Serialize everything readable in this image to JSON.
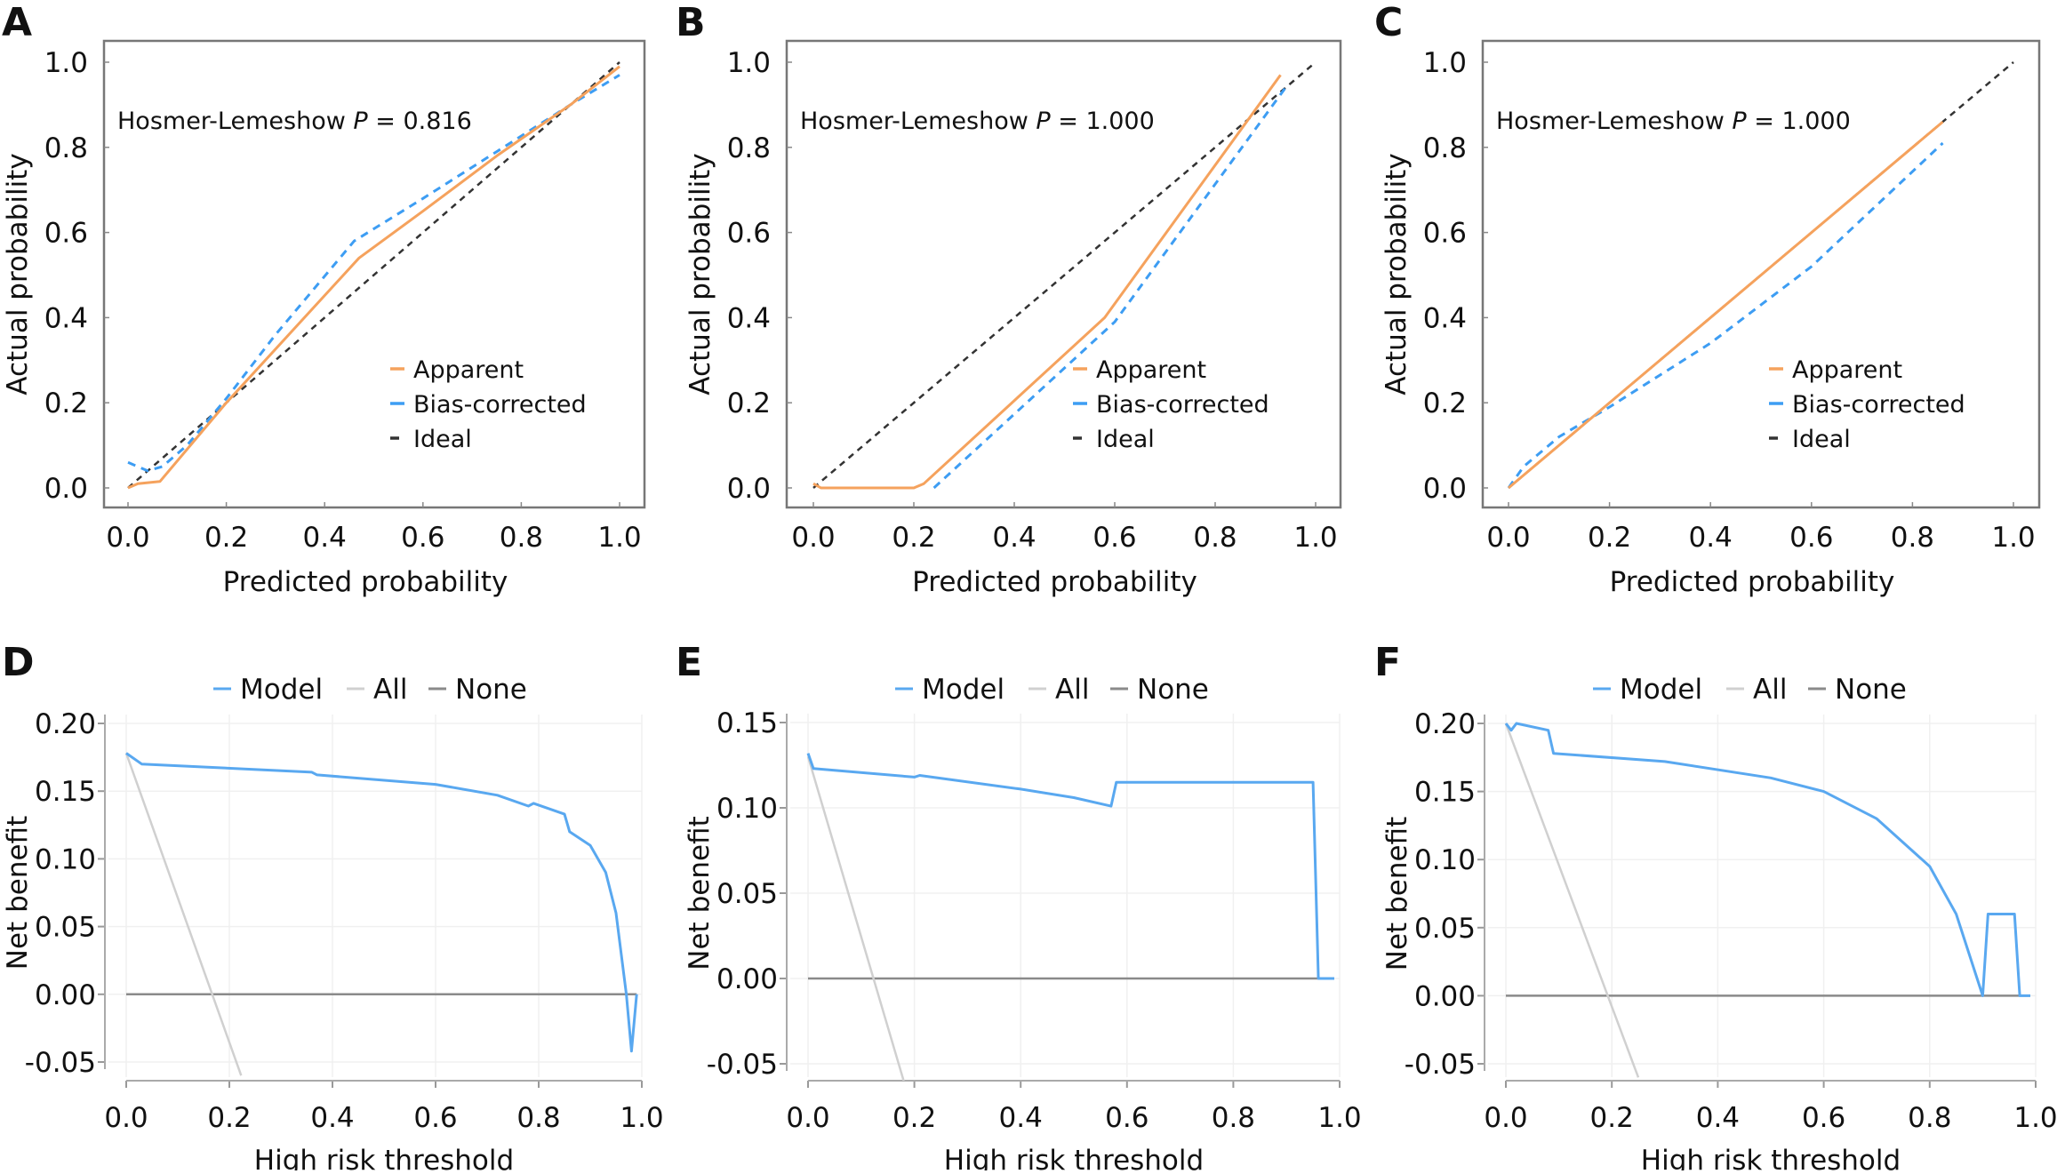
{
  "colors": {
    "apparent": "#f5a25d",
    "bias_corrected": "#3d9df3",
    "ideal": "#333333",
    "model": "#59a8f0",
    "all": "#d0d0d0",
    "none": "#8a8a8a"
  },
  "chart_data": [
    {
      "panel": "A",
      "type": "line",
      "xlabel": "Predicted probability",
      "ylabel": "Actual probability",
      "xlim": [
        0,
        1
      ],
      "ylim": [
        0,
        1
      ],
      "xticks": [
        "0.0",
        "0.2",
        "0.4",
        "0.6",
        "0.8",
        "1.0"
      ],
      "yticks": [
        "0.0",
        "0.2",
        "0.4",
        "0.6",
        "0.8",
        "1.0"
      ],
      "annotation": {
        "prefix": "Hosmer-Lemeshow ",
        "p": "P",
        "value": " = 0.816"
      },
      "legend_placement": "bottom-right",
      "series": [
        {
          "name": "Apparent",
          "style": "solid",
          "color_key": "apparent",
          "points": [
            [
              0,
              0
            ],
            [
              0.02,
              0.01
            ],
            [
              0.065,
              0.015
            ],
            [
              0.2,
              0.2
            ],
            [
              0.47,
              0.54
            ],
            [
              0.6,
              0.65
            ],
            [
              0.75,
              0.78
            ],
            [
              0.9,
              0.9
            ],
            [
              1,
              0.99
            ]
          ]
        },
        {
          "name": "Bias-corrected",
          "style": "dashed",
          "color_key": "bias_corrected",
          "points": [
            [
              0,
              0.06
            ],
            [
              0.04,
              0.04
            ],
            [
              0.07,
              0.05
            ],
            [
              0.12,
              0.1
            ],
            [
              0.2,
              0.21
            ],
            [
              0.3,
              0.36
            ],
            [
              0.46,
              0.58
            ],
            [
              0.6,
              0.68
            ],
            [
              0.75,
              0.79
            ],
            [
              0.9,
              0.9
            ],
            [
              1,
              0.97
            ]
          ]
        },
        {
          "name": "Ideal",
          "style": "dashed",
          "color_key": "ideal",
          "points": [
            [
              0,
              0
            ],
            [
              1,
              1
            ]
          ]
        }
      ]
    },
    {
      "panel": "B",
      "type": "line",
      "xlabel": "Predicted probability",
      "ylabel": "Actual probability",
      "xlim": [
        0,
        1
      ],
      "ylim": [
        0,
        1
      ],
      "xticks": [
        "0.0",
        "0.2",
        "0.4",
        "0.6",
        "0.8",
        "1.0"
      ],
      "yticks": [
        "0.0",
        "0.2",
        "0.4",
        "0.6",
        "0.8",
        "1.0"
      ],
      "annotation": {
        "prefix": "Hosmer-Lemeshow ",
        "p": "P",
        "value": " = 1.000"
      },
      "legend_placement": "bottom-right",
      "series": [
        {
          "name": "Apparent",
          "style": "solid",
          "color_key": "apparent",
          "points": [
            [
              0.0,
              0.01
            ],
            [
              0.015,
              0
            ],
            [
              0.2,
              0
            ],
            [
              0.22,
              0.01
            ],
            [
              0.58,
              0.4
            ],
            [
              0.93,
              0.97
            ]
          ]
        },
        {
          "name": "Bias-corrected",
          "style": "dashed",
          "color_key": "bias_corrected",
          "points": [
            [
              0.24,
              0
            ],
            [
              0.6,
              0.39
            ],
            [
              0.94,
              0.94
            ]
          ]
        },
        {
          "name": "Ideal",
          "style": "dashed",
          "color_key": "ideal",
          "points": [
            [
              0,
              0
            ],
            [
              1,
              1
            ]
          ]
        }
      ]
    },
    {
      "panel": "C",
      "type": "line",
      "xlabel": "Predicted probability",
      "ylabel": "Actual probability",
      "xlim": [
        0,
        1
      ],
      "ylim": [
        0,
        1
      ],
      "xticks": [
        "0.0",
        "0.2",
        "0.4",
        "0.6",
        "0.8",
        "1.0"
      ],
      "yticks": [
        "0.0",
        "0.2",
        "0.4",
        "0.6",
        "0.8",
        "1.0"
      ],
      "annotation": {
        "prefix": "Hosmer-Lemeshow ",
        "p": "P",
        "value": " = 1.000"
      },
      "legend_placement": "bottom-right",
      "series": [
        {
          "name": "Apparent",
          "style": "solid",
          "color_key": "apparent",
          "points": [
            [
              0,
              0
            ],
            [
              0.86,
              0.86
            ]
          ]
        },
        {
          "name": "Bias-corrected",
          "style": "dashed",
          "color_key": "bias_corrected",
          "points": [
            [
              0,
              0
            ],
            [
              0.03,
              0.05
            ],
            [
              0.1,
              0.12
            ],
            [
              0.2,
              0.19
            ],
            [
              0.4,
              0.34
            ],
            [
              0.6,
              0.52
            ],
            [
              0.86,
              0.81
            ]
          ]
        },
        {
          "name": "Ideal",
          "style": "dashed",
          "color_key": "ideal",
          "points": [
            [
              0,
              0
            ],
            [
              1,
              1
            ]
          ]
        }
      ]
    },
    {
      "panel": "D",
      "type": "line",
      "xlabel": "High risk threshold",
      "ylabel": "Net benefit",
      "xlim": [
        0,
        1
      ],
      "ylim": [
        -0.05,
        0.2
      ],
      "xticks": [
        "0.0",
        "0.2",
        "0.4",
        "0.6",
        "0.8",
        "1.0"
      ],
      "yticks": [
        "-0.05",
        "0.00",
        "0.05",
        "0.10",
        "0.15",
        "0.20"
      ],
      "grid": true,
      "legend_placement": "top",
      "series": [
        {
          "name": "Model",
          "style": "solid",
          "color_key": "model",
          "points": [
            [
              0,
              0.178
            ],
            [
              0.03,
              0.17
            ],
            [
              0.36,
              0.164
            ],
            [
              0.37,
              0.162
            ],
            [
              0.6,
              0.155
            ],
            [
              0.72,
              0.147
            ],
            [
              0.78,
              0.139
            ],
            [
              0.79,
              0.141
            ],
            [
              0.85,
              0.133
            ],
            [
              0.86,
              0.12
            ],
            [
              0.9,
              0.11
            ],
            [
              0.93,
              0.09
            ],
            [
              0.95,
              0.06
            ],
            [
              0.97,
              0.0
            ],
            [
              0.98,
              -0.042
            ],
            [
              0.99,
              0
            ]
          ]
        },
        {
          "name": "All",
          "style": "solid",
          "color_key": "all",
          "points": [
            [
              0,
              0.178
            ],
            [
              0.223,
              -0.06
            ]
          ]
        },
        {
          "name": "None",
          "style": "solid",
          "color_key": "none",
          "points": [
            [
              0,
              0
            ],
            [
              0.99,
              0
            ]
          ]
        }
      ]
    },
    {
      "panel": "E",
      "type": "line",
      "xlabel": "High risk threshold",
      "ylabel": "Net benefit",
      "xlim": [
        0,
        1
      ],
      "ylim": [
        -0.05,
        0.15
      ],
      "xticks": [
        "0.0",
        "0.2",
        "0.4",
        "0.6",
        "0.8",
        "1.0"
      ],
      "yticks": [
        "-0.05",
        "0.00",
        "0.05",
        "0.10",
        "0.15"
      ],
      "grid": true,
      "legend_placement": "top",
      "series": [
        {
          "name": "Model",
          "style": "solid",
          "color_key": "model",
          "points": [
            [
              0,
              0.132
            ],
            [
              0.01,
              0.123
            ],
            [
              0.2,
              0.118
            ],
            [
              0.21,
              0.119
            ],
            [
              0.4,
              0.111
            ],
            [
              0.5,
              0.106
            ],
            [
              0.57,
              0.101
            ],
            [
              0.58,
              0.115
            ],
            [
              0.95,
              0.115
            ],
            [
              0.96,
              0
            ],
            [
              0.99,
              0
            ]
          ]
        },
        {
          "name": "All",
          "style": "solid",
          "color_key": "all",
          "points": [
            [
              0,
              0.13
            ],
            [
              0.18,
              -0.06
            ]
          ]
        },
        {
          "name": "None",
          "style": "solid",
          "color_key": "none",
          "points": [
            [
              0,
              0
            ],
            [
              0.99,
              0
            ]
          ]
        }
      ]
    },
    {
      "panel": "F",
      "type": "line",
      "xlabel": "High risk threshold",
      "ylabel": "Net benefit",
      "xlim": [
        0,
        1
      ],
      "ylim": [
        -0.05,
        0.2
      ],
      "xticks": [
        "0.0",
        "0.2",
        "0.4",
        "0.6",
        "0.8",
        "1.0"
      ],
      "yticks": [
        "-0.05",
        "0.00",
        "0.05",
        "0.10",
        "0.15",
        "0.20"
      ],
      "grid": true,
      "legend_placement": "top",
      "series": [
        {
          "name": "Model",
          "style": "solid",
          "color_key": "model",
          "points": [
            [
              0,
              0.2
            ],
            [
              0.01,
              0.195
            ],
            [
              0.02,
              0.2
            ],
            [
              0.08,
              0.195
            ],
            [
              0.09,
              0.178
            ],
            [
              0.3,
              0.172
            ],
            [
              0.5,
              0.16
            ],
            [
              0.6,
              0.15
            ],
            [
              0.7,
              0.13
            ],
            [
              0.8,
              0.095
            ],
            [
              0.85,
              0.06
            ],
            [
              0.9,
              0
            ],
            [
              0.91,
              0.06
            ],
            [
              0.96,
              0.06
            ],
            [
              0.97,
              0
            ],
            [
              0.99,
              0
            ]
          ]
        },
        {
          "name": "All",
          "style": "solid",
          "color_key": "all",
          "points": [
            [
              0,
              0.2
            ],
            [
              0.25,
              -0.06
            ]
          ]
        },
        {
          "name": "None",
          "style": "solid",
          "color_key": "none",
          "points": [
            [
              0,
              0
            ],
            [
              0.99,
              0
            ]
          ]
        }
      ]
    }
  ]
}
